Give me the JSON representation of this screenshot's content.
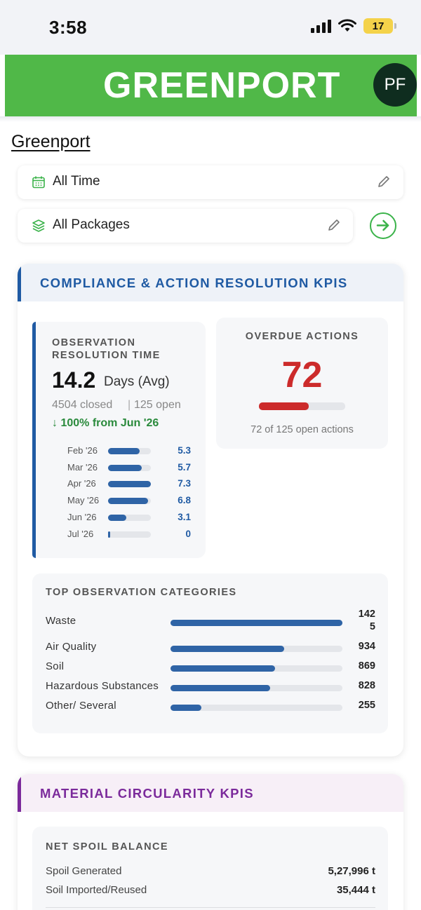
{
  "status_bar": {
    "time": "3:58",
    "battery": "17"
  },
  "header": {
    "logo": "GREENPORT",
    "avatar_initials": "PF"
  },
  "breadcrumb": "Greenport",
  "filters": {
    "time": {
      "label": "All Time",
      "icon": "calendar-icon"
    },
    "packages": {
      "label": "All Packages",
      "icon": "layers-icon"
    }
  },
  "compliance": {
    "title": "COMPLIANCE & ACTION RESOLUTION KPIS",
    "accent_color": "#1f5aa3",
    "resolution": {
      "caption_line1": "OBSERVATION",
      "caption_line2": "RESOLUTION TIME",
      "value": "14.2",
      "unit": "Days (Avg)",
      "closed": "4504 closed",
      "separator": "|",
      "open": "125 open",
      "trend": "↓ 100% from Jun '26",
      "months": [
        {
          "label": "Feb '26",
          "value": "5.3",
          "fill": 0.73
        },
        {
          "label": "Mar '26",
          "value": "5.7",
          "fill": 0.78
        },
        {
          "label": "Apr '26",
          "value": "7.3",
          "fill": 1.0
        },
        {
          "label": "May '26",
          "value": "6.8",
          "fill": 0.93
        },
        {
          "label": "Jun '26",
          "value": "3.1",
          "fill": 0.42
        },
        {
          "label": "Jul '26",
          "value": "0",
          "fill": 0.0
        }
      ]
    },
    "overdue": {
      "caption": "OVERDUE ACTIONS",
      "value": "72",
      "fill": 0.576,
      "subtext": "72 of 125 open actions",
      "color": "#cc2b2b"
    },
    "categories": {
      "caption": "TOP OBSERVATION CATEGORIES",
      "items": [
        {
          "label": "Waste",
          "value_line1": "142",
          "value_line2": "5",
          "fill": 1.0
        },
        {
          "label": "Air Quality",
          "value_line1": "934",
          "value_line2": "",
          "fill": 0.66
        },
        {
          "label": "Soil",
          "value_line1": "869",
          "value_line2": "",
          "fill": 0.61
        },
        {
          "label": "Hazardous Substances",
          "value_line1": "828",
          "value_line2": "",
          "fill": 0.58
        },
        {
          "label": "Other/ Several",
          "value_line1": "255",
          "value_line2": "",
          "fill": 0.18
        }
      ]
    }
  },
  "circularity": {
    "title": "MATERIAL CIRCULARITY KPIS",
    "accent_color": "#7b2a9b",
    "net_spoil": {
      "caption": "NET SPOIL BALANCE",
      "rows": [
        {
          "label": "Spoil Generated",
          "value": "5,27,996 t"
        },
        {
          "label": "Soil Imported/Reused",
          "value": "35,444 t"
        }
      ]
    }
  }
}
